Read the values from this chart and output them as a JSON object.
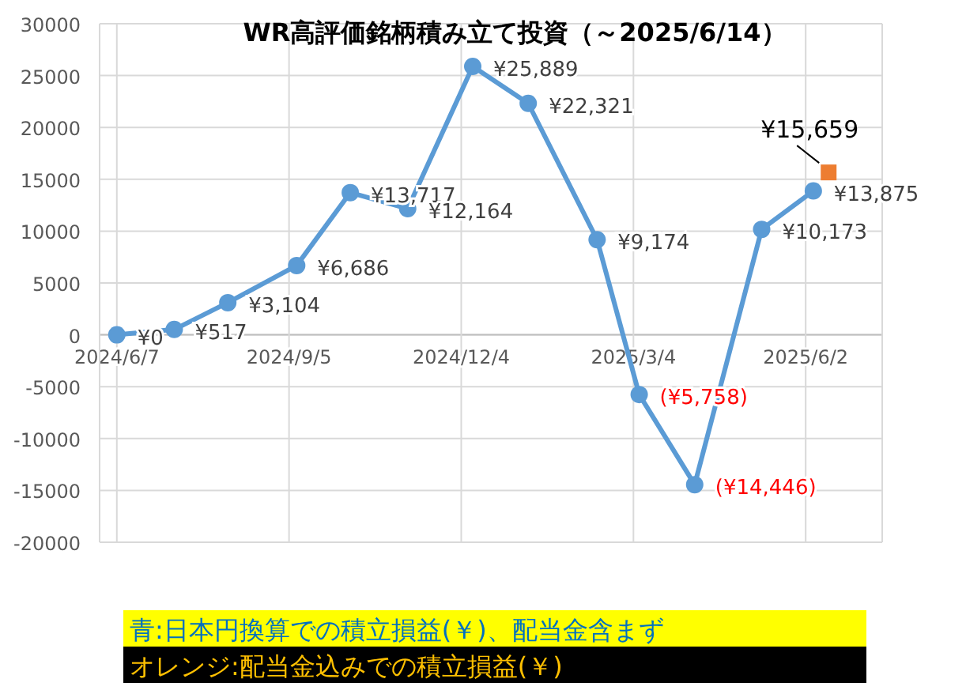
{
  "chart_data": {
    "type": "line",
    "title": "WR高評価銘柄積み立て投資（～2025/6/14）",
    "xlim": [
      "2024-05-29",
      "2025-07-12"
    ],
    "xticks": [
      {
        "value": "2024-06-07",
        "label": "2024/6/7"
      },
      {
        "value": "2024-09-05",
        "label": "2024/9/5"
      },
      {
        "value": "2024-12-04",
        "label": "2024/12/4"
      },
      {
        "value": "2025-03-04",
        "label": "2025/3/4"
      },
      {
        "value": "2025-06-02",
        "label": "2025/6/2"
      }
    ],
    "ylim": [
      -20000,
      30000
    ],
    "yticks": [
      -20000,
      -15000,
      -10000,
      -5000,
      0,
      5000,
      10000,
      15000,
      20000,
      25000,
      30000
    ],
    "grid": true,
    "line_style": "solid",
    "series": [
      {
        "color": "#5b9bd5",
        "marker": "circle",
        "x": [
          "2024-06-07",
          "2024-07-07",
          "2024-08-04",
          "2024-09-09",
          "2024-10-07",
          "2024-11-06",
          "2024-12-10",
          "2025-01-08",
          "2025-02-13",
          "2025-03-07",
          "2025-04-05",
          "2025-05-10",
          "2025-06-06"
        ],
        "values": [
          0,
          517,
          3104,
          6686,
          13717,
          12164,
          25889,
          22321,
          9174,
          -5758,
          -14446,
          10173,
          13875
        ],
        "value_labels": [
          "¥0",
          "¥517",
          "¥3,104",
          "¥6,686",
          "¥13,717",
          "¥12,164",
          "¥25,889",
          "¥22,321",
          "¥9,174",
          "(¥5,758)",
          "(¥14,446)",
          "¥10,173",
          "¥13,875"
        ]
      },
      {
        "color": "#ed7d31",
        "marker": "square",
        "x": [
          "2025-06-14"
        ],
        "values": [
          15659
        ],
        "value_labels": [
          "¥15,659"
        ]
      }
    ],
    "annotations": [
      "青:日本円換算での積立損益(￥)、配当金含まず",
      "オレンジ:配当金込みでの積立損益(￥)"
    ]
  }
}
